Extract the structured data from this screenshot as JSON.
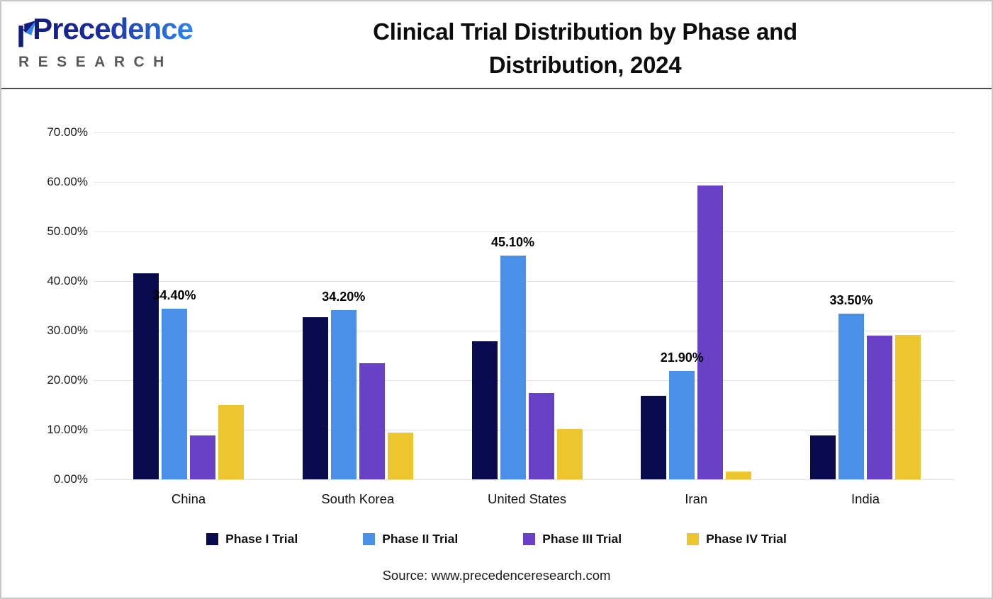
{
  "logo": {
    "brand": "Precedence",
    "subbrand": "RESEARCH"
  },
  "header": {
    "title_line1": "Clinical Trial Distribution by Phase and",
    "title_line2": "Distribution, 2024"
  },
  "chart_data": {
    "type": "bar",
    "categories": [
      "China",
      "South Korea",
      "United States",
      "Iran",
      "India"
    ],
    "series": [
      {
        "name": "Phase I Trial",
        "color": "#0A0A4F",
        "values": [
          41.6,
          32.7,
          27.9,
          16.8,
          8.9
        ]
      },
      {
        "name": "Phase II Trial",
        "color": "#4A90E8",
        "values": [
          34.4,
          34.2,
          45.1,
          21.9,
          33.5
        ]
      },
      {
        "name": "Phase III Trial",
        "color": "#6941C6",
        "values": [
          8.9,
          23.4,
          17.5,
          59.3,
          29.0
        ]
      },
      {
        "name": "Phase IV Trial",
        "color": "#EDC52F",
        "values": [
          15.0,
          9.4,
          10.2,
          1.6,
          29.2
        ]
      }
    ],
    "data_labels": {
      "labeled_series": "Phase II Trial",
      "labels": [
        "34.40%",
        "34.20%",
        "45.10%",
        "21.90%",
        "33.50%"
      ]
    },
    "title": "Clinical Trial Distribution by Phase and Distribution, 2024",
    "xlabel": "",
    "ylabel": "",
    "ylim": [
      0,
      70
    ],
    "ytick_step": 10,
    "yticks": [
      "70.00%",
      "60.00%",
      "50.00%",
      "40.00%",
      "30.00%",
      "20.00%",
      "10.00%",
      "0.00%"
    ],
    "grid": true,
    "legend_position": "bottom"
  },
  "footer": {
    "source": "Source: www.precedenceresearch.com"
  }
}
